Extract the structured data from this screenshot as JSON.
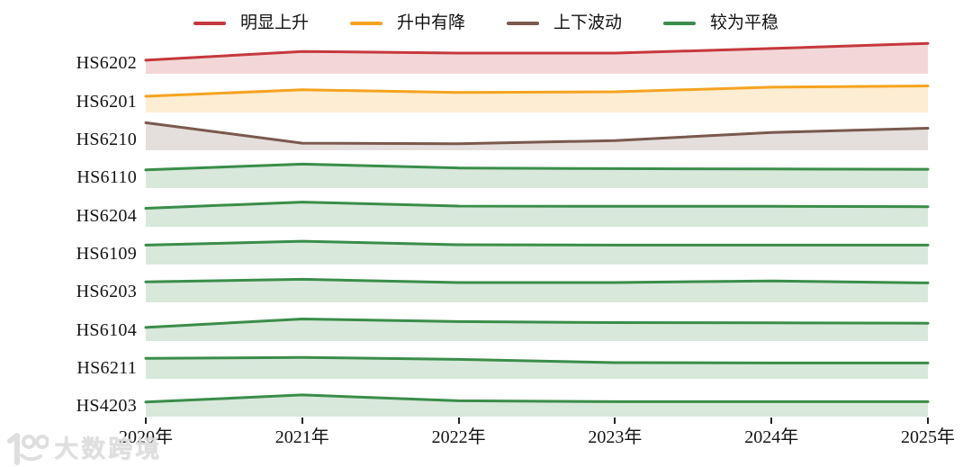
{
  "legend": {
    "items": [
      {
        "label": "明显上升",
        "color": "#c5383d"
      },
      {
        "label": "升中有降",
        "color": "#f5a31f"
      },
      {
        "label": "上下波动",
        "color": "#7a594e"
      },
      {
        "label": "较为平稳",
        "color": "#3a8d49"
      }
    ]
  },
  "chart_data": {
    "type": "area",
    "subtype": "ridgeline-small-multiples",
    "x_labels": [
      "2020年",
      "2021年",
      "2022年",
      "2023年",
      "2024年",
      "2025年"
    ],
    "value_note": "no numeric y-axis shown; values are relative band heights 0-1 estimated from pixels",
    "fill_opacity": 0.2,
    "series": [
      {
        "name": "HS6202",
        "trend": "明显上升",
        "color": "#c5383d",
        "values": [
          0.42,
          0.69,
          0.64,
          0.64,
          0.78,
          0.94
        ]
      },
      {
        "name": "HS6201",
        "trend": "升中有降",
        "color": "#f5a31f",
        "values": [
          0.5,
          0.7,
          0.62,
          0.64,
          0.78,
          0.82
        ]
      },
      {
        "name": "HS6210",
        "trend": "上下波动",
        "color": "#7a594e",
        "values": [
          0.85,
          0.22,
          0.2,
          0.3,
          0.55,
          0.68
        ]
      },
      {
        "name": "HS6110",
        "trend": "较为平稳",
        "color": "#3a8d49",
        "values": [
          0.56,
          0.74,
          0.62,
          0.6,
          0.59,
          0.58
        ]
      },
      {
        "name": "HS6204",
        "trend": "较为平稳",
        "color": "#3a8d49",
        "values": [
          0.57,
          0.76,
          0.64,
          0.63,
          0.63,
          0.62
        ]
      },
      {
        "name": "HS6109",
        "trend": "较为平稳",
        "color": "#3a8d49",
        "values": [
          0.6,
          0.72,
          0.61,
          0.6,
          0.6,
          0.6
        ]
      },
      {
        "name": "HS6203",
        "trend": "较为平稳",
        "color": "#3a8d49",
        "values": [
          0.63,
          0.71,
          0.61,
          0.61,
          0.66,
          0.6
        ]
      },
      {
        "name": "HS6104",
        "trend": "较为平稳",
        "color": "#3a8d49",
        "values": [
          0.42,
          0.68,
          0.6,
          0.57,
          0.56,
          0.55
        ]
      },
      {
        "name": "HS6211",
        "trend": "较为平稳",
        "color": "#3a8d49",
        "values": [
          0.63,
          0.66,
          0.6,
          0.5,
          0.49,
          0.49
        ]
      },
      {
        "name": "HS4203",
        "trend": "较为平稳",
        "color": "#3a8d49",
        "values": [
          0.45,
          0.67,
          0.49,
          0.46,
          0.46,
          0.46
        ]
      }
    ]
  },
  "watermark": {
    "logo_text": "100",
    "brand": "大数跨境"
  }
}
